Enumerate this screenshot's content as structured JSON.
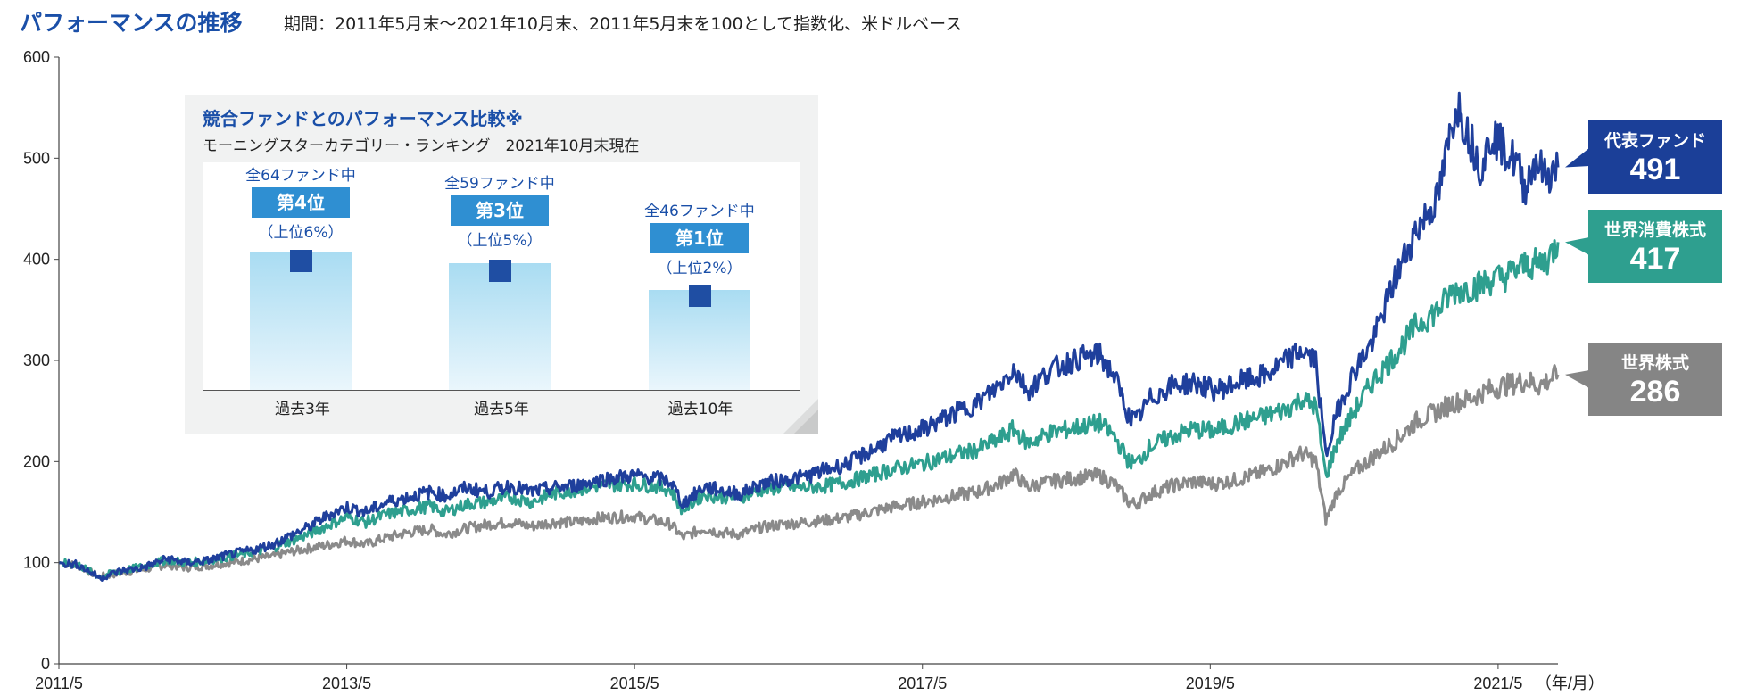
{
  "header": {
    "title": "パフォーマンスの推移",
    "subtitle": "期間：2011年5月末〜2021年10月末、2011年5月末を100として指数化、米ドルベース"
  },
  "chart_data": {
    "type": "line",
    "title": "パフォーマンスの推移",
    "xlabel": "",
    "xunit": "（年/月）",
    "ylabel": "",
    "ylim": [
      0,
      600
    ],
    "yticks": [
      0,
      100,
      200,
      300,
      400,
      500,
      600
    ],
    "xlim": [
      2011.417,
      2021.833
    ],
    "xticks": [
      {
        "x": 2011.417,
        "label": "2011/5"
      },
      {
        "x": 2013.417,
        "label": "2013/5"
      },
      {
        "x": 2015.417,
        "label": "2015/5"
      },
      {
        "x": 2017.417,
        "label": "2017/5"
      },
      {
        "x": 2019.417,
        "label": "2019/5"
      },
      {
        "x": 2021.417,
        "label": "2021/5"
      }
    ],
    "grid": false,
    "series": [
      {
        "name": "代表ファンド",
        "color": "#1f3f9c",
        "end_value": 491,
        "points": [
          [
            2011.42,
            100
          ],
          [
            2011.55,
            98
          ],
          [
            2011.7,
            85
          ],
          [
            2011.85,
            92
          ],
          [
            2012.0,
            95
          ],
          [
            2012.17,
            104
          ],
          [
            2012.3,
            100
          ],
          [
            2012.45,
            102
          ],
          [
            2012.6,
            108
          ],
          [
            2012.75,
            112
          ],
          [
            2012.9,
            118
          ],
          [
            2013.0,
            125
          ],
          [
            2013.15,
            135
          ],
          [
            2013.3,
            148
          ],
          [
            2013.42,
            155
          ],
          [
            2013.55,
            150
          ],
          [
            2013.7,
            160
          ],
          [
            2013.85,
            165
          ],
          [
            2014.0,
            170
          ],
          [
            2014.1,
            166
          ],
          [
            2014.25,
            174
          ],
          [
            2014.4,
            170
          ],
          [
            2014.55,
            176
          ],
          [
            2014.7,
            170
          ],
          [
            2014.85,
            174
          ],
          [
            2015.0,
            176
          ],
          [
            2015.17,
            182
          ],
          [
            2015.4,
            186
          ],
          [
            2015.55,
            184
          ],
          [
            2015.67,
            180
          ],
          [
            2015.75,
            158
          ],
          [
            2015.9,
            175
          ],
          [
            2016.0,
            172
          ],
          [
            2016.15,
            168
          ],
          [
            2016.3,
            178
          ],
          [
            2016.45,
            182
          ],
          [
            2016.6,
            185
          ],
          [
            2016.75,
            192
          ],
          [
            2016.9,
            198
          ],
          [
            2017.05,
            210
          ],
          [
            2017.2,
            222
          ],
          [
            2017.42,
            232
          ],
          [
            2017.6,
            245
          ],
          [
            2017.8,
            258
          ],
          [
            2017.95,
            275
          ],
          [
            2018.05,
            292
          ],
          [
            2018.15,
            270
          ],
          [
            2018.3,
            290
          ],
          [
            2018.5,
            302
          ],
          [
            2018.65,
            305
          ],
          [
            2018.75,
            285
          ],
          [
            2018.85,
            245
          ],
          [
            2018.9,
            240
          ],
          [
            2019.0,
            262
          ],
          [
            2019.15,
            275
          ],
          [
            2019.3,
            278
          ],
          [
            2019.45,
            270
          ],
          [
            2019.6,
            278
          ],
          [
            2019.8,
            285
          ],
          [
            2019.95,
            300
          ],
          [
            2020.05,
            310
          ],
          [
            2020.1,
            305
          ],
          [
            2020.15,
            300
          ],
          [
            2020.22,
            205
          ],
          [
            2020.3,
            250
          ],
          [
            2020.42,
            290
          ],
          [
            2020.55,
            320
          ],
          [
            2020.7,
            380
          ],
          [
            2020.85,
            430
          ],
          [
            2021.0,
            460
          ],
          [
            2021.08,
            520
          ],
          [
            2021.13,
            555
          ],
          [
            2021.22,
            520
          ],
          [
            2021.3,
            490
          ],
          [
            2021.38,
            525
          ],
          [
            2021.45,
            510
          ],
          [
            2021.55,
            495
          ],
          [
            2021.6,
            470
          ],
          [
            2021.68,
            500
          ],
          [
            2021.75,
            480
          ],
          [
            2021.833,
            491
          ]
        ]
      },
      {
        "name": "世界消費株式",
        "color": "#2e9f8f",
        "end_value": 417,
        "points": [
          [
            2011.42,
            100
          ],
          [
            2011.55,
            98
          ],
          [
            2011.7,
            86
          ],
          [
            2011.85,
            92
          ],
          [
            2012.0,
            96
          ],
          [
            2012.17,
            103
          ],
          [
            2012.3,
            100
          ],
          [
            2012.45,
            102
          ],
          [
            2012.6,
            106
          ],
          [
            2012.75,
            110
          ],
          [
            2012.9,
            115
          ],
          [
            2013.0,
            120
          ],
          [
            2013.15,
            128
          ],
          [
            2013.3,
            138
          ],
          [
            2013.42,
            145
          ],
          [
            2013.55,
            140
          ],
          [
            2013.7,
            148
          ],
          [
            2013.85,
            152
          ],
          [
            2014.0,
            156
          ],
          [
            2014.1,
            150
          ],
          [
            2014.25,
            158
          ],
          [
            2014.4,
            160
          ],
          [
            2014.55,
            165
          ],
          [
            2014.7,
            160
          ],
          [
            2014.85,
            168
          ],
          [
            2015.0,
            172
          ],
          [
            2015.17,
            176
          ],
          [
            2015.4,
            178
          ],
          [
            2015.55,
            176
          ],
          [
            2015.67,
            172
          ],
          [
            2015.75,
            152
          ],
          [
            2015.9,
            168
          ],
          [
            2016.0,
            165
          ],
          [
            2016.15,
            165
          ],
          [
            2016.3,
            172
          ],
          [
            2016.45,
            175
          ],
          [
            2016.6,
            174
          ],
          [
            2016.75,
            176
          ],
          [
            2016.9,
            180
          ],
          [
            2017.05,
            186
          ],
          [
            2017.2,
            192
          ],
          [
            2017.42,
            198
          ],
          [
            2017.6,
            205
          ],
          [
            2017.8,
            212
          ],
          [
            2017.95,
            222
          ],
          [
            2018.05,
            232
          ],
          [
            2018.15,
            218
          ],
          [
            2018.3,
            228
          ],
          [
            2018.5,
            234
          ],
          [
            2018.65,
            238
          ],
          [
            2018.75,
            225
          ],
          [
            2018.85,
            200
          ],
          [
            2018.9,
            198
          ],
          [
            2019.0,
            215
          ],
          [
            2019.15,
            225
          ],
          [
            2019.3,
            232
          ],
          [
            2019.45,
            230
          ],
          [
            2019.6,
            238
          ],
          [
            2019.8,
            245
          ],
          [
            2019.95,
            252
          ],
          [
            2020.05,
            262
          ],
          [
            2020.1,
            258
          ],
          [
            2020.15,
            255
          ],
          [
            2020.22,
            185
          ],
          [
            2020.3,
            220
          ],
          [
            2020.42,
            250
          ],
          [
            2020.55,
            280
          ],
          [
            2020.7,
            305
          ],
          [
            2020.85,
            335
          ],
          [
            2021.0,
            350
          ],
          [
            2021.1,
            368
          ],
          [
            2021.22,
            372
          ],
          [
            2021.3,
            375
          ],
          [
            2021.38,
            380
          ],
          [
            2021.45,
            382
          ],
          [
            2021.55,
            390
          ],
          [
            2021.62,
            395
          ],
          [
            2021.7,
            395
          ],
          [
            2021.76,
            400
          ],
          [
            2021.833,
            417
          ]
        ]
      },
      {
        "name": "世界株式",
        "color": "#8a8a8a",
        "end_value": 286,
        "points": [
          [
            2011.42,
            100
          ],
          [
            2011.55,
            97
          ],
          [
            2011.7,
            86
          ],
          [
            2011.85,
            90
          ],
          [
            2012.0,
            93
          ],
          [
            2012.17,
            98
          ],
          [
            2012.3,
            95
          ],
          [
            2012.45,
            97
          ],
          [
            2012.6,
            100
          ],
          [
            2012.75,
            103
          ],
          [
            2012.9,
            106
          ],
          [
            2013.0,
            110
          ],
          [
            2013.15,
            114
          ],
          [
            2013.3,
            118
          ],
          [
            2013.42,
            122
          ],
          [
            2013.55,
            118
          ],
          [
            2013.7,
            125
          ],
          [
            2013.85,
            130
          ],
          [
            2014.0,
            133
          ],
          [
            2014.1,
            128
          ],
          [
            2014.25,
            134
          ],
          [
            2014.4,
            138
          ],
          [
            2014.55,
            140
          ],
          [
            2014.7,
            136
          ],
          [
            2014.85,
            140
          ],
          [
            2015.0,
            140
          ],
          [
            2015.17,
            144
          ],
          [
            2015.4,
            146
          ],
          [
            2015.55,
            142
          ],
          [
            2015.67,
            138
          ],
          [
            2015.75,
            125
          ],
          [
            2015.9,
            134
          ],
          [
            2016.0,
            130
          ],
          [
            2016.15,
            128
          ],
          [
            2016.3,
            135
          ],
          [
            2016.45,
            138
          ],
          [
            2016.6,
            140
          ],
          [
            2016.75,
            142
          ],
          [
            2016.9,
            145
          ],
          [
            2017.05,
            150
          ],
          [
            2017.2,
            155
          ],
          [
            2017.42,
            160
          ],
          [
            2017.6,
            165
          ],
          [
            2017.8,
            170
          ],
          [
            2017.95,
            178
          ],
          [
            2018.05,
            188
          ],
          [
            2018.15,
            175
          ],
          [
            2018.3,
            180
          ],
          [
            2018.5,
            184
          ],
          [
            2018.65,
            186
          ],
          [
            2018.75,
            178
          ],
          [
            2018.85,
            160
          ],
          [
            2018.9,
            158
          ],
          [
            2019.0,
            168
          ],
          [
            2019.15,
            176
          ],
          [
            2019.3,
            180
          ],
          [
            2019.45,
            178
          ],
          [
            2019.6,
            182
          ],
          [
            2019.8,
            190
          ],
          [
            2019.95,
            200
          ],
          [
            2020.05,
            208
          ],
          [
            2020.1,
            205
          ],
          [
            2020.15,
            200
          ],
          [
            2020.22,
            142
          ],
          [
            2020.3,
            170
          ],
          [
            2020.42,
            190
          ],
          [
            2020.55,
            205
          ],
          [
            2020.7,
            220
          ],
          [
            2020.85,
            240
          ],
          [
            2021.0,
            250
          ],
          [
            2021.1,
            258
          ],
          [
            2021.22,
            262
          ],
          [
            2021.3,
            268
          ],
          [
            2021.38,
            272
          ],
          [
            2021.45,
            275
          ],
          [
            2021.55,
            278
          ],
          [
            2021.62,
            280
          ],
          [
            2021.7,
            275
          ],
          [
            2021.76,
            280
          ],
          [
            2021.833,
            286
          ]
        ]
      }
    ]
  },
  "end_labels": [
    {
      "name": "代表ファンド",
      "value": "491",
      "color": "#1b3f98"
    },
    {
      "name": "世界消費株式",
      "value": "417",
      "color": "#2e9f8f"
    },
    {
      "name": "世界株式",
      "value": "286",
      "color": "#858585"
    }
  ],
  "inset": {
    "title": "競合ファンドとのパフォーマンス比較※",
    "subtitle": "モーニングスターカテゴリー・ランキング　2021年10月末現在",
    "rankings": [
      {
        "period": "過去3年",
        "total": "全64ファンド中",
        "rank": "第4位",
        "percentile": "（上位6%）",
        "percentile_value": 6
      },
      {
        "period": "過去5年",
        "total": "全59ファンド中",
        "rank": "第3位",
        "percentile": "（上位5%）",
        "percentile_value": 5
      },
      {
        "period": "過去10年",
        "total": "全46ファンド中",
        "rank": "第1位",
        "percentile": "（上位2%）",
        "percentile_value": 2
      }
    ]
  }
}
